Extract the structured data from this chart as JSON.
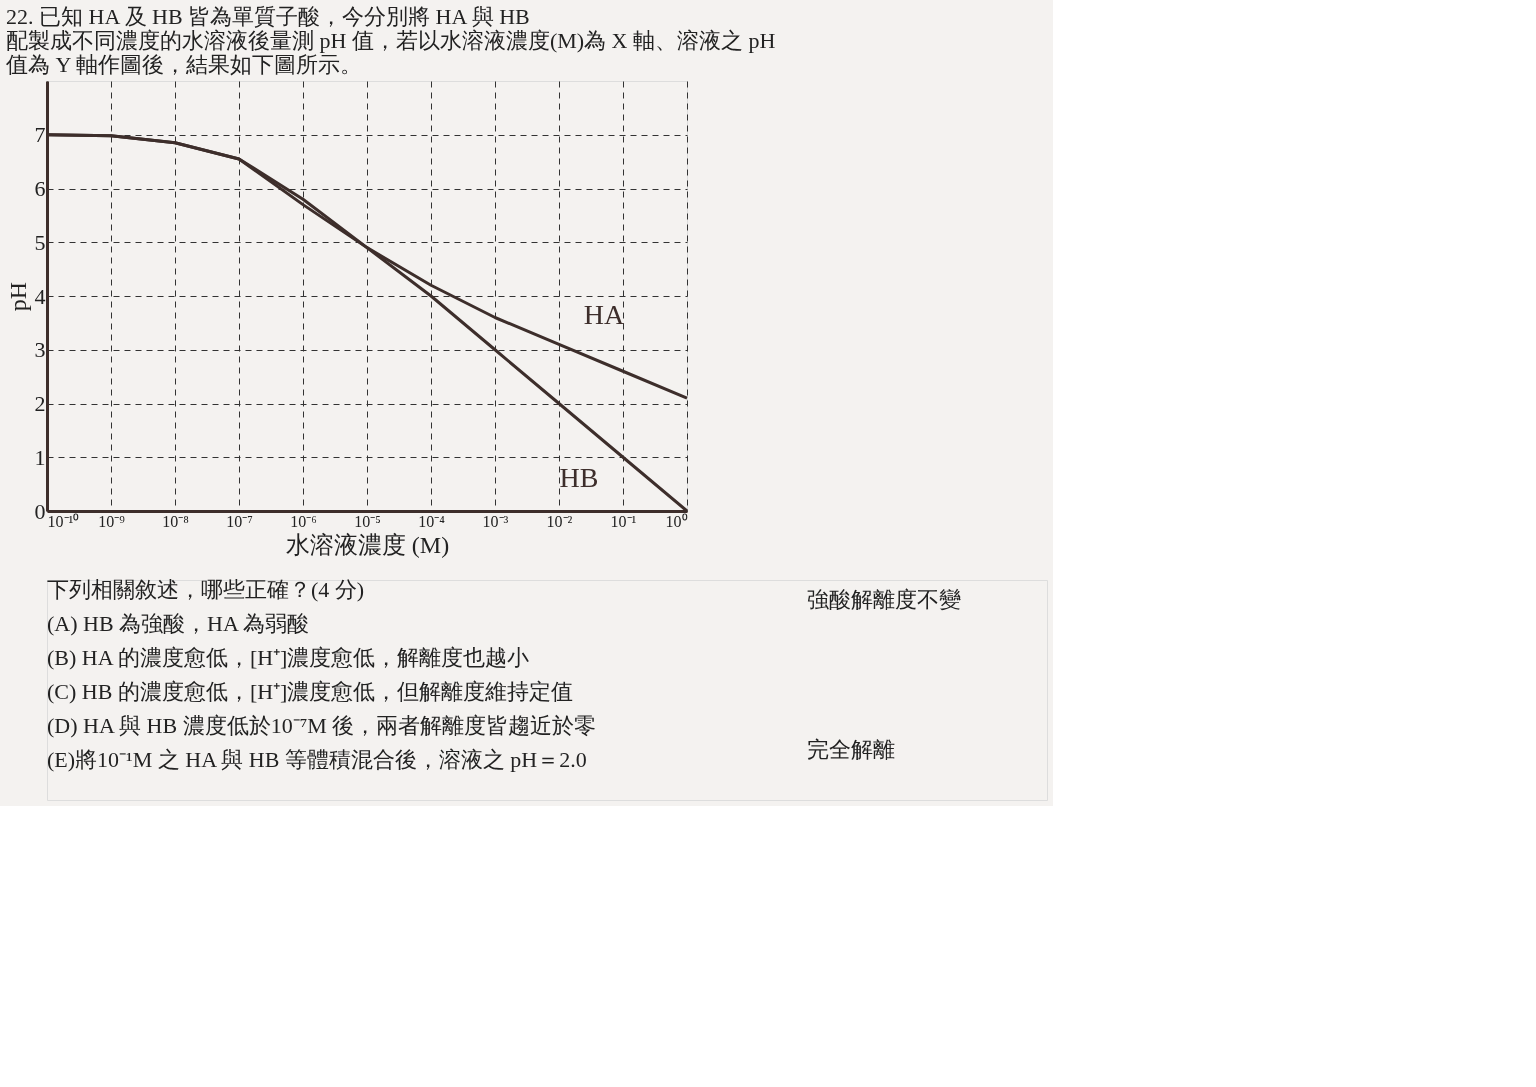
{
  "chart_data": {
    "type": "line",
    "title": "22. 已知 HA 及 HB 皆為單質子酸，今分別將 HA 與 HB 配製成不同濃度的水溶液後量測 pH 值，若以水溶液濃度(M)為 X 軸、溶液之 pH 值為 Y 軸作圖後，結果如下圖所示。",
    "xlabel": "水溶液濃度 (M)",
    "ylabel": "pH",
    "x": [
      1e-10,
      1e-09,
      1e-08,
      1e-07,
      1e-06,
      1e-05,
      0.0001,
      0.001,
      0.01,
      0.1,
      1
    ],
    "series": [
      {
        "name": "HA",
        "color": "#3d2e2b",
        "values": [
          7.0,
          6.98,
          6.85,
          6.55,
          5.7,
          4.9,
          4.2,
          3.6,
          3.1,
          2.6,
          2.1
        ]
      },
      {
        "name": "HB",
        "color": "#3d2e2b",
        "values": [
          7.0,
          6.98,
          6.85,
          6.55,
          5.8,
          4.9,
          4.0,
          3.0,
          2.0,
          1.0,
          0.0
        ]
      }
    ],
    "log": "x",
    "xlim": [
      1e-10,
      1
    ],
    "ylim": [
      0,
      8
    ],
    "xticks": [
      {
        "value": 1e-10,
        "label": "10⁻¹⁰"
      },
      {
        "value": 1e-09,
        "label": "10⁻⁹"
      },
      {
        "value": 1e-08,
        "label": "10⁻⁸"
      },
      {
        "value": 1e-07,
        "label": "10⁻⁷"
      },
      {
        "value": 1e-06,
        "label": "10⁻⁶"
      },
      {
        "value": 1e-05,
        "label": "10⁻⁵"
      },
      {
        "value": 0.0001,
        "label": "10⁻⁴"
      },
      {
        "value": 0.001,
        "label": "10⁻³"
      },
      {
        "value": 0.01,
        "label": "10⁻²"
      },
      {
        "value": 0.1,
        "label": "10⁻¹"
      },
      {
        "value": 1,
        "label": "10⁰"
      }
    ],
    "yticks": [
      0,
      1,
      2,
      3,
      4,
      5,
      6,
      7
    ],
    "grid": true,
    "marker": "none",
    "line_style": "solid",
    "annotations": [
      "下列相關敘述，哪些正確？(4 分)",
      "(A) HB 為強酸，HA 為弱酸",
      "(B) HA 的濃度愈低，[H⁺]濃度愈低，解離度也越小",
      "(C) HB 的濃度愈低，[H⁺]濃度愈低，但解離度維持定值",
      "(D) HA 與 HB 濃度低於10⁻⁷M 後，兩者解離度皆趨近於零",
      "(E)將10⁻¹M 之 HA 與 HB 等體積混合後，溶液之 pH＝2.0",
      "強酸解離度不變",
      "完全解離"
    ]
  }
}
